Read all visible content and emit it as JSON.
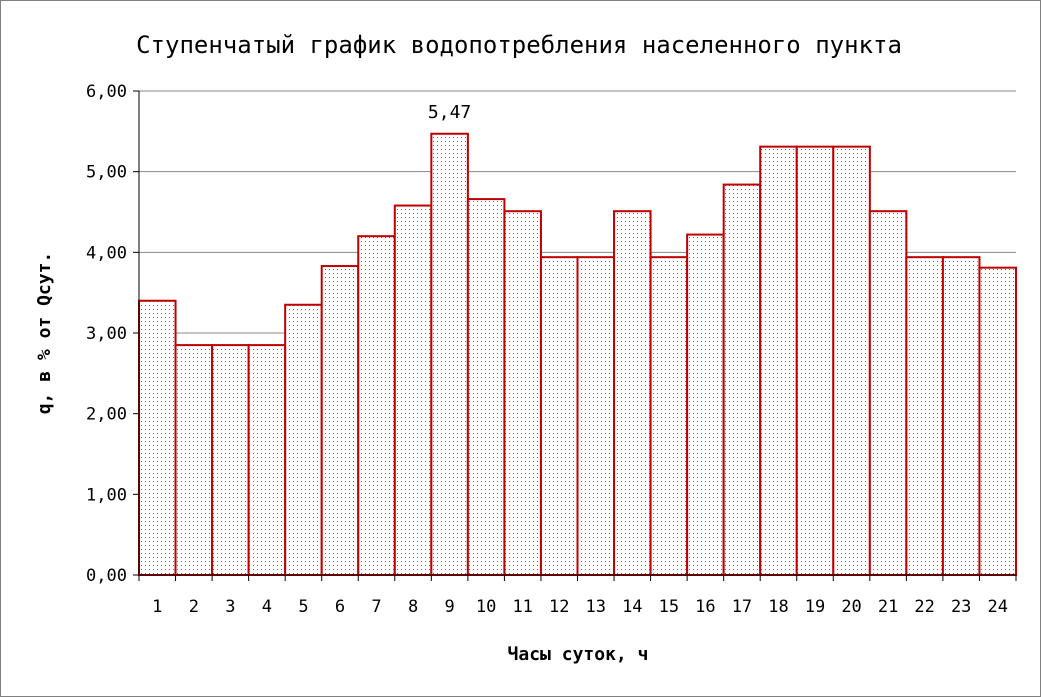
{
  "chart_data": {
    "type": "bar",
    "title": "Ступенчатый график водопотребления населенного пункта",
    "xlabel": "Часы суток, ч",
    "ylabel": "q, в % от Qсут.",
    "categories": [
      "1",
      "2",
      "3",
      "4",
      "5",
      "6",
      "7",
      "8",
      "9",
      "10",
      "11",
      "12",
      "13",
      "14",
      "15",
      "16",
      "17",
      "18",
      "19",
      "20",
      "21",
      "22",
      "23",
      "24"
    ],
    "values": [
      3.4,
      2.85,
      2.85,
      2.85,
      3.35,
      3.83,
      4.2,
      4.58,
      5.47,
      4.66,
      4.51,
      3.94,
      3.94,
      4.51,
      3.94,
      4.22,
      4.84,
      5.31,
      5.31,
      5.31,
      4.51,
      3.94,
      3.94,
      3.81
    ],
    "ylim": [
      0,
      6
    ],
    "y_ticks": [
      "0,00",
      "1,00",
      "2,00",
      "3,00",
      "4,00",
      "5,00",
      "6,00"
    ],
    "grid": true,
    "data_labels": [
      {
        "category": "9",
        "text": "5,47"
      }
    ],
    "bar_color": "#c00000",
    "bar_fill": "#ffffff"
  }
}
